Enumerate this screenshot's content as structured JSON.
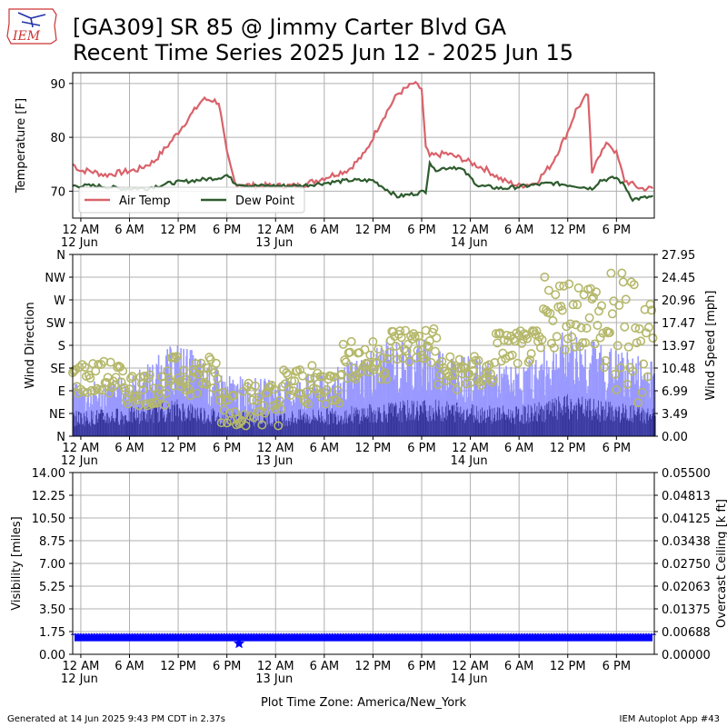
{
  "header": {
    "logo_text": "IEM",
    "title_line1": "[GA309] SR 85 @ Jimmy Carter Blvd  GA",
    "title_line2": "Recent Time Series 2025 Jun 12 - 2025 Jun 15"
  },
  "footer": {
    "generated": "Generated at 14 Jun 2025 9:43 PM CDT in 2.37s",
    "app": "IEM Autoplot App #43"
  },
  "x_axis": {
    "tick_labels": [
      "12 AM",
      "6 AM",
      "12 PM",
      "6 PM",
      "12 AM",
      "6 AM",
      "12 PM",
      "6 PM",
      "12 AM",
      "6 AM",
      "12 PM",
      "6 PM"
    ],
    "date_labels": [
      {
        "text": "12 Jun",
        "at": "2025-06-12 00:00"
      },
      {
        "text": "13 Jun",
        "at": "2025-06-13 00:00"
      },
      {
        "text": "14 Jun",
        "at": "2025-06-14 00:00"
      }
    ],
    "xlabel": "Plot Time Zone: America/New_York"
  },
  "colors": {
    "air_temp": "#d9626a",
    "dew_point": "#2e5c2e",
    "gust": "#9999ff",
    "wind_speed": "#333399",
    "direction_marker": "#b5b86a",
    "visibility": "#0000ff",
    "ceiling_label": "#008000"
  },
  "chart_data": [
    {
      "type": "line",
      "panel": "temperature",
      "x_range": [
        "2025-06-11 23:00",
        "2025-06-14 22:40"
      ],
      "ylabel": "Temperature [F]",
      "ylim": [
        65,
        92
      ],
      "yticks": [
        "70",
        "80",
        "90"
      ],
      "grid": true,
      "legend_position": "lower-left",
      "series": [
        {
          "name": "Air Temp",
          "points": [
            [
              "2025-06-11 23:00",
              75.0
            ],
            [
              "2025-06-12 00:00",
              73.8
            ],
            [
              "2025-06-12 01:00",
              73.8
            ],
            [
              "2025-06-12 03:00",
              73.0
            ],
            [
              "2025-06-12 05:00",
              73.5
            ],
            [
              "2025-06-12 07:00",
              74.0
            ],
            [
              "2025-06-12 09:00",
              75.5
            ],
            [
              "2025-06-12 11:00",
              79.0
            ],
            [
              "2025-06-12 13:00",
              83.0
            ],
            [
              "2025-06-12 15:00",
              87.0
            ],
            [
              "2025-06-12 16:00",
              87.0
            ],
            [
              "2025-06-12 17:00",
              86.5
            ],
            [
              "2025-06-12 18:00",
              77.0
            ],
            [
              "2025-06-12 19:00",
              71.5
            ],
            [
              "2025-06-12 21:00",
              71.0
            ],
            [
              "2025-06-13 00:00",
              71.0
            ],
            [
              "2025-06-13 03:00",
              71.0
            ],
            [
              "2025-06-13 06:00",
              72.5
            ],
            [
              "2025-06-13 09:00",
              74.0
            ],
            [
              "2025-06-13 11:00",
              77.0
            ],
            [
              "2025-06-13 13:00",
              83.0
            ],
            [
              "2025-06-13 15:00",
              88.0
            ],
            [
              "2025-06-13 17:00",
              90.0
            ],
            [
              "2025-06-13 18:00",
              89.0
            ],
            [
              "2025-06-13 18:30",
              78.0
            ],
            [
              "2025-06-13 19:00",
              76.5
            ],
            [
              "2025-06-13 21:00",
              77.0
            ],
            [
              "2025-06-13 23:00",
              76.0
            ],
            [
              "2025-06-14 02:00",
              74.0
            ],
            [
              "2025-06-14 04:00",
              72.0
            ],
            [
              "2025-06-14 06:00",
              71.0
            ],
            [
              "2025-06-14 08:00",
              71.5
            ],
            [
              "2025-06-14 10:00",
              75.0
            ],
            [
              "2025-06-14 12:00",
              81.0
            ],
            [
              "2025-06-14 13:00",
              85.0
            ],
            [
              "2025-06-14 14:00",
              87.0
            ],
            [
              "2025-06-14 14:30",
              88.0
            ],
            [
              "2025-06-14 15:00",
              73.0
            ],
            [
              "2025-06-14 15:30",
              76.0
            ],
            [
              "2025-06-14 17:00",
              79.0
            ],
            [
              "2025-06-14 18:00",
              77.0
            ],
            [
              "2025-06-14 19:00",
              72.0
            ],
            [
              "2025-06-14 21:00",
              70.5
            ],
            [
              "2025-06-14 22:40",
              70.5
            ]
          ]
        },
        {
          "name": "Dew Point",
          "points": [
            [
              "2025-06-11 23:00",
              71.0
            ],
            [
              "2025-06-12 02:00",
              71.0
            ],
            [
              "2025-06-12 05:00",
              70.5
            ],
            [
              "2025-06-12 08:00",
              70.5
            ],
            [
              "2025-06-12 11:00",
              71.5
            ],
            [
              "2025-06-12 14:00",
              72.0
            ],
            [
              "2025-06-12 17:00",
              72.5
            ],
            [
              "2025-06-12 18:00",
              73.0
            ],
            [
              "2025-06-12 19:00",
              71.5
            ],
            [
              "2025-06-12 21:00",
              71.0
            ],
            [
              "2025-06-13 00:00",
              71.0
            ],
            [
              "2025-06-13 03:00",
              71.0
            ],
            [
              "2025-06-13 06:00",
              71.5
            ],
            [
              "2025-06-13 09:00",
              72.0
            ],
            [
              "2025-06-13 12:00",
              72.0
            ],
            [
              "2025-06-13 14:00",
              70.0
            ],
            [
              "2025-06-13 15:00",
              69.0
            ],
            [
              "2025-06-13 17:00",
              69.5
            ],
            [
              "2025-06-13 18:30",
              70.0
            ],
            [
              "2025-06-13 19:00",
              75.5
            ],
            [
              "2025-06-13 19:30",
              74.0
            ],
            [
              "2025-06-13 22:00",
              74.5
            ],
            [
              "2025-06-13 23:00",
              74.0
            ],
            [
              "2025-06-14 01:00",
              71.0
            ],
            [
              "2025-06-14 04:00",
              70.5
            ],
            [
              "2025-06-14 07:00",
              71.0
            ],
            [
              "2025-06-14 10:00",
              71.5
            ],
            [
              "2025-06-14 13:00",
              71.0
            ],
            [
              "2025-06-14 15:00",
              70.5
            ],
            [
              "2025-06-14 16:00",
              72.0
            ],
            [
              "2025-06-14 18:00",
              72.5
            ],
            [
              "2025-06-14 19:00",
              71.0
            ],
            [
              "2025-06-14 20:00",
              68.5
            ],
            [
              "2025-06-14 22:40",
              69.0
            ]
          ]
        }
      ]
    },
    {
      "type": "bar",
      "panel": "wind",
      "x_range": [
        "2025-06-11 23:00",
        "2025-06-14 22:40"
      ],
      "ylabel": "Wind Direction",
      "y2label": "Wind Speed [mph]",
      "direction_ticks": [
        "N",
        "NE",
        "E",
        "SE",
        "S",
        "SW",
        "W",
        "NW",
        "N"
      ],
      "speed_ticks": [
        "0.00",
        "3.49",
        "6.99",
        "10.48",
        "13.97",
        "17.47",
        "20.96",
        "24.45",
        "27.95"
      ],
      "speed_lim": [
        0,
        27.95
      ],
      "direction_lim": [
        0,
        360
      ],
      "grid": true,
      "speed_profile_mph": [
        [
          "2025-06-11 23:00",
          3
        ],
        [
          "2025-06-12 06:00",
          3.5
        ],
        [
          "2025-06-12 12:00",
          4.5
        ],
        [
          "2025-06-12 18:00",
          3
        ],
        [
          "2025-06-13 00:00",
          3
        ],
        [
          "2025-06-13 08:00",
          3.5
        ],
        [
          "2025-06-13 13:00",
          4
        ],
        [
          "2025-06-13 18:00",
          4.5
        ],
        [
          "2025-06-14 00:00",
          4
        ],
        [
          "2025-06-14 06:00",
          3.5
        ],
        [
          "2025-06-14 12:00",
          5
        ],
        [
          "2025-06-14 18:00",
          4
        ],
        [
          "2025-06-14 22:40",
          3.5
        ]
      ],
      "gust_profile_mph": [
        [
          "2025-06-11 23:00",
          6
        ],
        [
          "2025-06-12 06:00",
          7
        ],
        [
          "2025-06-12 12:00",
          11
        ],
        [
          "2025-06-12 18:00",
          7
        ],
        [
          "2025-06-13 00:00",
          6.5
        ],
        [
          "2025-06-13 08:00",
          8
        ],
        [
          "2025-06-13 13:00",
          11
        ],
        [
          "2025-06-13 18:00",
          11.5
        ],
        [
          "2025-06-14 00:00",
          9
        ],
        [
          "2025-06-14 06:00",
          8
        ],
        [
          "2025-06-14 12:00",
          12.5
        ],
        [
          "2025-06-14 18:00",
          10
        ],
        [
          "2025-06-14 22:40",
          9
        ]
      ],
      "direction_clusters_deg": [
        [
          "2025-06-11 23:00",
          "2025-06-12 05:00",
          80,
          150
        ],
        [
          "2025-06-12 05:00",
          "2025-06-12 11:00",
          60,
          130
        ],
        [
          "2025-06-12 11:00",
          "2025-06-12 17:00",
          80,
          160
        ],
        [
          "2025-06-12 17:00",
          "2025-06-13 01:00",
          20,
          110
        ],
        [
          "2025-06-13 01:00",
          "2025-06-13 08:00",
          60,
          140
        ],
        [
          "2025-06-13 08:00",
          "2025-06-13 14:00",
          110,
          190
        ],
        [
          "2025-06-13 14:00",
          "2025-06-13 20:00",
          140,
          220
        ],
        [
          "2025-06-13 20:00",
          "2025-06-14 03:00",
          90,
          160
        ],
        [
          "2025-06-14 03:00",
          "2025-06-14 09:00",
          140,
          210
        ],
        [
          "2025-06-14 09:00",
          "2025-06-14 16:00",
          170,
          320
        ],
        [
          "2025-06-14 16:00",
          "2025-06-14 22:40",
          60,
          330
        ]
      ]
    },
    {
      "type": "line",
      "panel": "visibility",
      "x_range": [
        "2025-06-11 23:00",
        "2025-06-14 22:40"
      ],
      "ylabel": "Visibility [miles]",
      "y2label": "Overcast Ceiling [k ft]",
      "ylim": [
        0,
        14
      ],
      "yticks": [
        "0.00",
        "1.75",
        "3.50",
        "5.25",
        "7.00",
        "8.75",
        "10.50",
        "12.25",
        "14.00"
      ],
      "y2lim": [
        0,
        0.055
      ],
      "y2ticks": [
        "0.00000",
        "0.00688",
        "0.01375",
        "0.02063",
        "0.02750",
        "0.03438",
        "0.04125",
        "0.04813",
        "0.05500"
      ],
      "grid": true,
      "visibility_constant_miles": 1.25,
      "visibility_dip": [
        "2025-06-12 19:30",
        0.85
      ]
    }
  ]
}
